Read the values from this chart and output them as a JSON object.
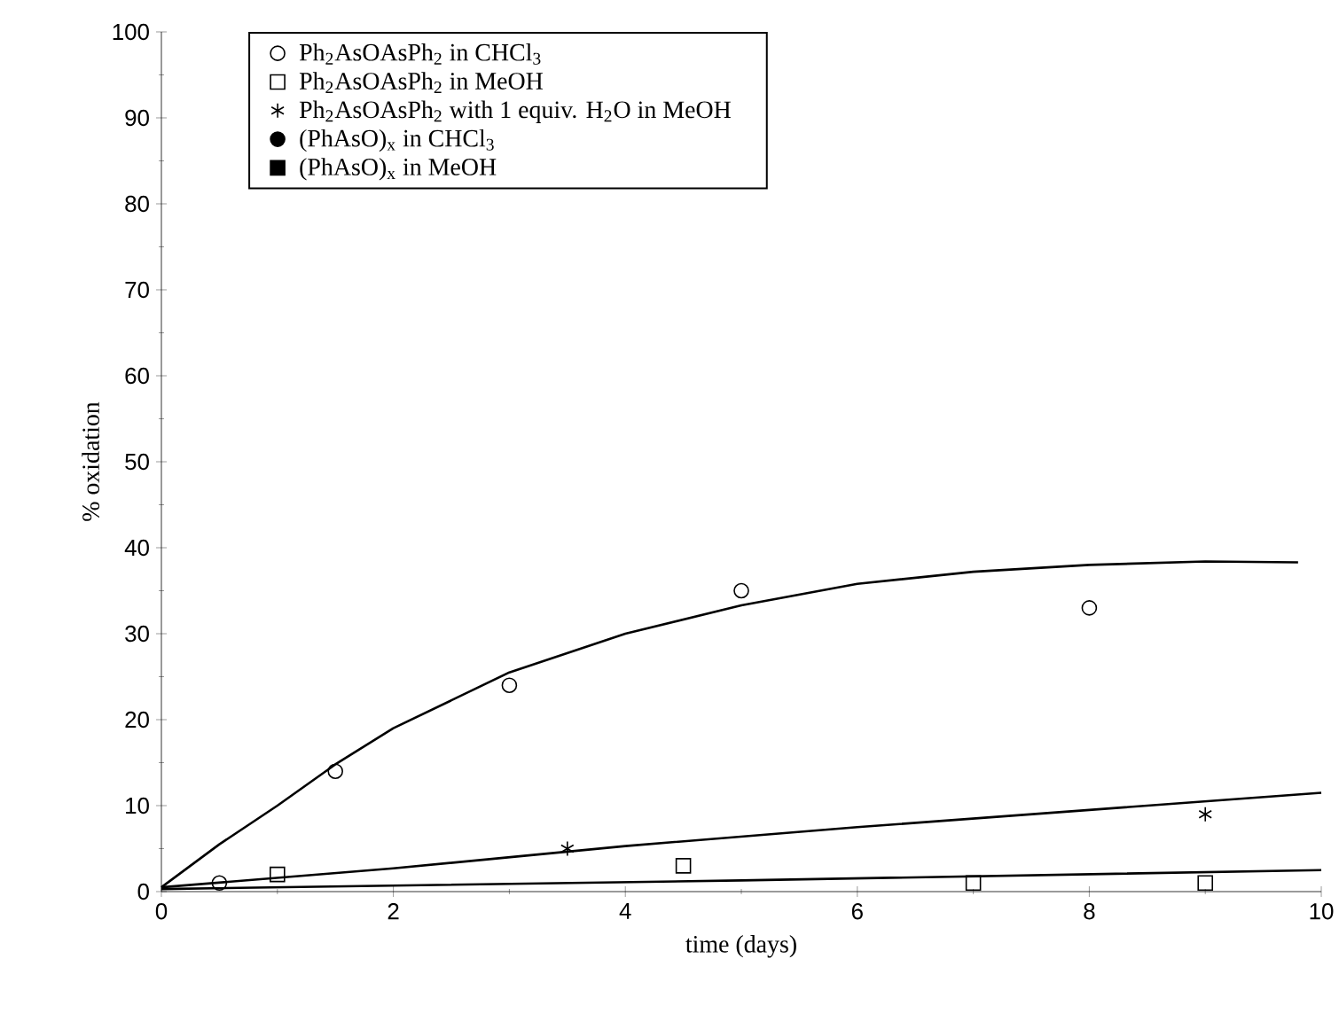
{
  "chart_data": {
    "type": "scatter",
    "xlabel": "time (days)",
    "ylabel": "% oxidation",
    "xlim": [
      0,
      10
    ],
    "ylim": [
      0,
      100
    ],
    "xticks": [
      0,
      2,
      4,
      6,
      8,
      10
    ],
    "yticks": [
      0,
      10,
      20,
      30,
      40,
      50,
      60,
      70,
      80,
      90,
      100
    ],
    "grid": false,
    "legend": "top",
    "series": [
      {
        "name": "Ph$_{2}$AsOAsPh$_{2}$ in CHCl$_{3}$",
        "color": "#000000",
        "marker": "circle",
        "x": [
          0.5,
          1.5,
          3,
          5,
          8
        ],
        "values": [
          1,
          14,
          24,
          35,
          33
        ]
      },
      {
        "name": "Ph$_{2}$AsOAsPh$_{2}$ in MeOH",
        "color": "#000000",
        "marker": "square",
        "x": [
          1,
          4.5,
          7,
          9
        ],
        "values": [
          2,
          3,
          1,
          1
        ]
      },
      {
        "name": "Ph$_{2}$AsOAsPh$_{2}$ with 1 equiv. H$_{2}$O in MeOH",
        "color": "#000000",
        "marker": "cross",
        "x": [
          3.5,
          9
        ],
        "values": [
          5,
          9
        ]
      },
      {
        "name": "(PhAsO)$_{x}$ in CHCl$_{3}$",
        "color": "#000000",
        "marker": "circle"
      },
      {
        "name": "(PhAsO)$_{x}$ in MeOH",
        "color": "#000000",
        "marker": "square"
      },
      {
        "type": "line",
        "color": "#000000",
        "marker": "none",
        "line_style": "solid",
        "x": [
          0,
          0.5,
          1,
          1.5,
          2,
          3,
          4,
          5,
          6,
          7,
          8,
          9,
          9.8
        ],
        "values": [
          0.5,
          5.5,
          10,
          14.8,
          19,
          25.5,
          30,
          33.3,
          35.8,
          37.2,
          38,
          38.4,
          38.3
        ]
      },
      {
        "type": "line",
        "color": "#000000",
        "marker": "none",
        "line_style": "solid",
        "x": [
          0,
          2,
          4,
          6,
          8,
          10
        ],
        "values": [
          0.5,
          2.7,
          5.3,
          7.5,
          9.5,
          11.5
        ]
      },
      {
        "type": "line",
        "color": "#000000",
        "marker": "none",
        "line_style": "solid",
        "x": [
          0,
          5,
          10
        ],
        "values": [
          0.3,
          1.3,
          2.5
        ]
      }
    ]
  }
}
